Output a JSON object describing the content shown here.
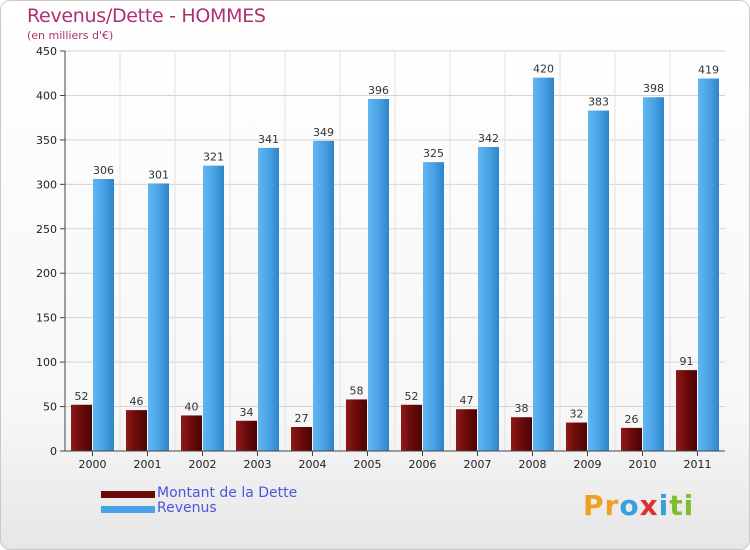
{
  "title": "Revenus/Dette - HOMMES",
  "subtitle": "(en milliers d'€)",
  "colors": {
    "title": "#b0306f",
    "debt_bar": "#6b0a0a",
    "revenue_bar": "#4aa3e6",
    "legend_text": "#4a55e0"
  },
  "logo": {
    "text": "Proxiti",
    "letters": [
      "P",
      "r",
      "o",
      "x",
      "i",
      "t",
      "i"
    ],
    "letter_colors": [
      "#f0a020",
      "#f0a020",
      "#3aa0dd",
      "#e03030",
      "#3aa0dd",
      "#7bbf30",
      "#7bbf30"
    ]
  },
  "chart_data": {
    "type": "bar",
    "categories": [
      "2000",
      "2001",
      "2002",
      "2003",
      "2004",
      "2005",
      "2006",
      "2007",
      "2008",
      "2009",
      "2010",
      "2011"
    ],
    "series": [
      {
        "name": "Montant de la Dette",
        "values": [
          52,
          46,
          40,
          34,
          27,
          58,
          52,
          47,
          38,
          32,
          26,
          91
        ]
      },
      {
        "name": "Revenus",
        "values": [
          306,
          301,
          321,
          341,
          349,
          396,
          325,
          342,
          420,
          383,
          398,
          419
        ]
      }
    ],
    "yticks": [
      0,
      50,
      100,
      150,
      200,
      250,
      300,
      350,
      400,
      450
    ],
    "ylim": [
      0,
      450
    ],
    "grid": true,
    "legend_position": "bottom-left"
  }
}
